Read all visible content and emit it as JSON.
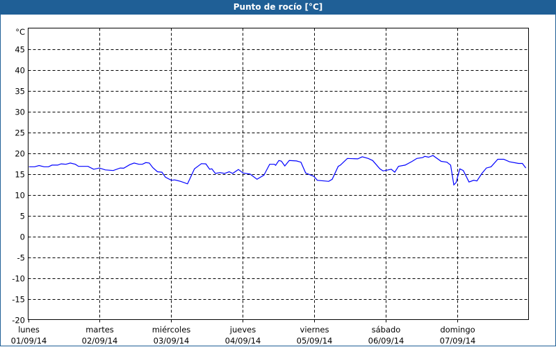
{
  "chart_data": {
    "type": "line",
    "title": "Punto de rocío [°C]",
    "ylabel": "°C",
    "ylim": [
      -20,
      50
    ],
    "yticks": [
      45,
      40,
      35,
      30,
      25,
      20,
      15,
      10,
      5,
      0,
      -5,
      -10,
      -15,
      -20
    ],
    "xlim": [
      "2014-09-01T00:00",
      "2014-09-08T00:00"
    ],
    "grid": true,
    "grid_style": "dashed",
    "line_color": "#0000ff",
    "xticks": [
      {
        "day": "lunes",
        "date": "01/09/14"
      },
      {
        "day": "martes",
        "date": "02/09/14"
      },
      {
        "day": "miércoles",
        "date": "03/09/14"
      },
      {
        "day": "jueves",
        "date": "04/09/14"
      },
      {
        "day": "viernes",
        "date": "05/09/14"
      },
      {
        "day": "sábado",
        "date": "06/09/14"
      },
      {
        "day": "domingo",
        "date": "07/09/14"
      }
    ],
    "series": [
      {
        "points": [
          [
            "2014-09-01T00:15",
            16.7
          ],
          [
            "2014-09-01T02:10",
            16.7
          ],
          [
            "2014-09-01T03:40",
            17.0
          ],
          [
            "2014-09-01T05:20",
            16.7
          ],
          [
            "2014-09-01T06:50",
            16.7
          ],
          [
            "2014-09-01T08:00",
            17.1
          ],
          [
            "2014-09-01T09:55",
            17.1
          ],
          [
            "2014-09-01T11:05",
            17.4
          ],
          [
            "2014-09-01T12:40",
            17.3
          ],
          [
            "2014-09-01T14:10",
            17.6
          ],
          [
            "2014-09-01T15:50",
            17.3
          ],
          [
            "2014-09-01T16:55",
            16.8
          ],
          [
            "2014-09-01T20:05",
            16.8
          ],
          [
            "2014-09-01T22:00",
            16.1
          ],
          [
            "2014-09-01T23:55",
            16.4
          ],
          [
            "2014-09-02T01:55",
            15.95
          ],
          [
            "2014-09-02T04:35",
            15.8
          ],
          [
            "2014-09-02T06:55",
            16.4
          ],
          [
            "2014-09-02T08:05",
            16.35
          ],
          [
            "2014-09-02T10:05",
            17.2
          ],
          [
            "2014-09-02T11:35",
            17.6
          ],
          [
            "2014-09-02T13:10",
            17.3
          ],
          [
            "2014-09-02T14:20",
            17.3
          ],
          [
            "2014-09-02T15:30",
            17.7
          ],
          [
            "2014-09-02T16:40",
            17.6
          ],
          [
            "2014-09-02T17:50",
            16.5
          ],
          [
            "2014-09-02T19:25",
            15.5
          ],
          [
            "2014-09-02T20:55",
            15.4
          ],
          [
            "2014-09-02T22:05",
            14.2
          ],
          [
            "2014-09-03T00:05",
            13.45
          ],
          [
            "2014-09-03T01:10",
            13.55
          ],
          [
            "2014-09-03T03:10",
            13.2
          ],
          [
            "2014-09-03T05:30",
            12.6
          ],
          [
            "2014-09-03T07:50",
            16.2
          ],
          [
            "2014-09-03T10:10",
            17.45
          ],
          [
            "2014-09-03T11:40",
            17.4
          ],
          [
            "2014-09-03T12:55",
            16.1
          ],
          [
            "2014-09-03T13:40",
            16.2
          ],
          [
            "2014-09-03T14:50",
            15.1
          ],
          [
            "2014-09-03T16:25",
            15.3
          ],
          [
            "2014-09-03T17:55",
            15.1
          ],
          [
            "2014-09-03T19:30",
            15.5
          ],
          [
            "2014-09-03T20:40",
            15.1
          ],
          [
            "2014-09-03T22:35",
            16.05
          ],
          [
            "2014-09-04T00:10",
            15.2
          ],
          [
            "2014-09-04T02:30",
            14.95
          ],
          [
            "2014-09-04T04:50",
            13.7
          ],
          [
            "2014-09-04T07:10",
            14.7
          ],
          [
            "2014-09-04T09:05",
            17.3
          ],
          [
            "2014-09-04T10:40",
            17.3
          ],
          [
            "2014-09-04T11:05",
            17.05
          ],
          [
            "2014-09-04T12:10",
            18.2
          ],
          [
            "2014-09-04T13:00",
            18.05
          ],
          [
            "2014-09-04T14:10",
            16.9
          ],
          [
            "2014-09-04T15:40",
            18.2
          ],
          [
            "2014-09-04T18:05",
            18.1
          ],
          [
            "2014-09-04T19:35",
            17.8
          ],
          [
            "2014-09-04T21:10",
            15.2
          ],
          [
            "2014-09-04T23:55",
            14.4
          ],
          [
            "2014-09-05T01:05",
            13.45
          ],
          [
            "2014-09-05T04:55",
            13.2
          ],
          [
            "2014-09-05T06:05",
            13.7
          ],
          [
            "2014-09-05T08:05",
            16.8
          ],
          [
            "2014-09-05T08:50",
            17.1
          ],
          [
            "2014-09-05T11:10",
            18.7
          ],
          [
            "2014-09-05T14:40",
            18.6
          ],
          [
            "2014-09-05T16:10",
            19.1
          ],
          [
            "2014-09-05T18:10",
            18.7
          ],
          [
            "2014-09-05T19:40",
            18.2
          ],
          [
            "2014-09-05T22:05",
            16.2
          ],
          [
            "2014-09-05T23:10",
            15.7
          ],
          [
            "2014-09-06T01:55",
            16.1
          ],
          [
            "2014-09-06T03:05",
            15.4
          ],
          [
            "2014-09-06T04:20",
            16.8
          ],
          [
            "2014-09-06T06:35",
            17.1
          ],
          [
            "2014-09-06T08:55",
            18.0
          ],
          [
            "2014-09-06T10:30",
            18.7
          ],
          [
            "2014-09-06T12:25",
            18.9
          ],
          [
            "2014-09-06T13:10",
            19.2
          ],
          [
            "2014-09-06T14:25",
            19.0
          ],
          [
            "2014-09-06T15:55",
            19.4
          ],
          [
            "2014-09-06T18:40",
            18.0
          ],
          [
            "2014-09-06T20:35",
            17.8
          ],
          [
            "2014-09-06T21:50",
            17.1
          ],
          [
            "2014-09-06T22:55",
            12.35
          ],
          [
            "2014-09-06T23:40",
            12.9
          ],
          [
            "2014-09-07T00:55",
            16.2
          ],
          [
            "2014-09-07T02:05",
            15.8
          ],
          [
            "2014-09-07T04:00",
            13.05
          ],
          [
            "2014-09-07T05:35",
            13.45
          ],
          [
            "2014-09-07T06:40",
            13.3
          ],
          [
            "2014-09-07T08:20",
            15.1
          ],
          [
            "2014-09-07T09:50",
            16.4
          ],
          [
            "2014-09-07T11:25",
            16.7
          ],
          [
            "2014-09-07T13:40",
            18.5
          ],
          [
            "2014-09-07T15:40",
            18.5
          ],
          [
            "2014-09-07T17:35",
            17.9
          ],
          [
            "2014-09-07T20:40",
            17.5
          ],
          [
            "2014-09-07T21:55",
            17.5
          ],
          [
            "2014-09-07T23:05",
            16.4
          ]
        ]
      }
    ]
  }
}
